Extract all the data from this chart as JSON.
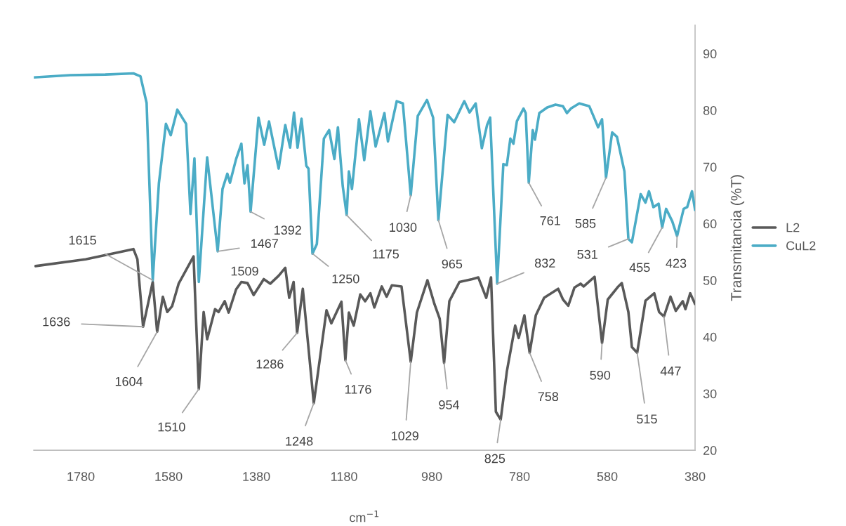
{
  "chart_data": {
    "type": "line",
    "xlabel": "cm$^{−1}$",
    "ylabel": "Transmitancia (%T)",
    "xlim": [
      1887,
      380
    ],
    "xticks": [
      1780,
      1580,
      1380,
      1180,
      980,
      780,
      580,
      380
    ],
    "ylim": [
      20,
      95
    ],
    "yticks": [
      20,
      30,
      40,
      50,
      60,
      70,
      80,
      90
    ],
    "grid": false,
    "legend": "right",
    "series": [
      {
        "name": "L2",
        "color": "#595959",
        "x": [
          1883,
          1769,
          1660,
          1651,
          1638,
          1616,
          1606,
          1593,
          1583,
          1572,
          1557,
          1523,
          1511,
          1500,
          1492,
          1474,
          1466,
          1452,
          1443,
          1426,
          1414,
          1400,
          1386,
          1363,
          1348,
          1329,
          1314,
          1305,
          1295,
          1287,
          1274,
          1249,
          1220,
          1209,
          1186,
          1177,
          1169,
          1158,
          1143,
          1132,
          1120,
          1111,
          1094,
          1083,
          1071,
          1049,
          1028,
          1014,
          990,
          974,
          962,
          952,
          940,
          917,
          888,
          874,
          856,
          845,
          834,
          823,
          809,
          806,
          790,
          782,
          769,
          757,
          743,
          724,
          692,
          681,
          669,
          655,
          641,
          634,
          609,
          592,
          579,
          555,
          547,
          532,
          524,
          512,
          493,
          473,
          462,
          451,
          436,
          424,
          408,
          402,
          391,
          380
        ],
        "values": [
          52.5,
          53.7,
          55.5,
          53.7,
          41.8,
          49.7,
          40.9,
          47.1,
          44.4,
          45.4,
          49.4,
          54.2,
          30.8,
          44.4,
          39.6,
          44.9,
          44.4,
          46.3,
          44.3,
          48.4,
          49.7,
          49.5,
          47.4,
          50.2,
          49.4,
          50.8,
          52.2,
          46.9,
          49.7,
          40.7,
          48.5,
          28.3,
          44.7,
          42.4,
          46.2,
          35.9,
          44.3,
          42.0,
          47.5,
          46.3,
          47.7,
          45.2,
          48.9,
          47.1,
          49.1,
          48.9,
          35.6,
          44.3,
          50.0,
          45.8,
          43.2,
          35.4,
          46.3,
          49.7,
          50.2,
          50.5,
          46.9,
          50.5,
          26.8,
          25.4,
          33.9,
          35.2,
          42.0,
          39.8,
          43.8,
          37.2,
          43.8,
          46.9,
          48.5,
          46.6,
          45.5,
          48.7,
          49.4,
          48.9,
          50.6,
          38.9,
          46.6,
          48.9,
          49.5,
          44.4,
          38.2,
          37.2,
          46.4,
          47.7,
          44.4,
          43.6,
          47.1,
          44.6,
          46.3,
          44.9,
          47.7,
          45.8
        ]
      },
      {
        "name": "CuL2",
        "color": "#4bacc6",
        "x": [
          1887,
          1804,
          1724,
          1660,
          1644,
          1630,
          1616,
          1602,
          1586,
          1575,
          1560,
          1540,
          1530,
          1521,
          1511,
          1492,
          1468,
          1457,
          1446,
          1440,
          1426,
          1414,
          1407,
          1400,
          1393,
          1375,
          1362,
          1351,
          1329,
          1314,
          1303,
          1294,
          1286,
          1277,
          1266,
          1261,
          1252,
          1242,
          1226,
          1214,
          1202,
          1194,
          1183,
          1174,
          1169,
          1162,
          1146,
          1134,
          1120,
          1108,
          1088,
          1080,
          1060,
          1046,
          1028,
          1012,
          991,
          977,
          965,
          944,
          929,
          906,
          894,
          880,
          866,
          854,
          847,
          831,
          817,
          809,
          801,
          794,
          786,
          771,
          766,
          759,
          750,
          745,
          735,
          717,
          698,
          681,
          672,
          663,
          644,
          621,
          609,
          601,
          592,
          583,
          569,
          558,
          541,
          532,
          524,
          504,
          493,
          485,
          475,
          463,
          455,
          446,
          432,
          421,
          406,
          398,
          387,
          380
        ],
        "values": [
          85.8,
          86.2,
          86.3,
          86.5,
          86.0,
          81.3,
          50.0,
          67.1,
          77.6,
          75.6,
          80.1,
          77.6,
          61.7,
          71.5,
          49.7,
          71.7,
          55.1,
          66.1,
          68.8,
          67.2,
          71.4,
          74.1,
          67.1,
          70.3,
          62.1,
          78.7,
          73.9,
          78.0,
          69.7,
          77.4,
          73.4,
          79.6,
          73.4,
          78.5,
          70.2,
          69.7,
          54.7,
          56.4,
          75.0,
          76.5,
          71.4,
          77.0,
          66.6,
          61.5,
          69.2,
          66.1,
          78.4,
          71.2,
          79.8,
          73.6,
          79.5,
          74.5,
          81.6,
          81.2,
          65.0,
          79.0,
          81.8,
          78.7,
          60.6,
          79.2,
          77.9,
          81.6,
          79.6,
          81.2,
          73.3,
          77.4,
          78.7,
          49.4,
          70.5,
          70.3,
          75.0,
          74.1,
          78.1,
          80.3,
          79.5,
          67.2,
          76.5,
          74.8,
          79.5,
          80.5,
          81.0,
          80.7,
          79.5,
          80.3,
          81.2,
          80.7,
          78.5,
          77.0,
          78.4,
          68.1,
          76.1,
          75.3,
          69.2,
          57.3,
          56.7,
          65.2,
          63.7,
          65.7,
          62.9,
          63.5,
          59.3,
          62.6,
          60.4,
          57.8,
          62.6,
          62.9,
          65.7,
          62.4
        ]
      }
    ],
    "annotations": [
      {
        "text": "1615",
        "x": 1616,
        "y": 50.0
      },
      {
        "text": "1636",
        "x": 1638,
        "y": 41.8
      },
      {
        "text": "1604",
        "x": 1606,
        "y": 40.9
      },
      {
        "text": "1510",
        "x": 1511,
        "y": 30.8
      },
      {
        "text": "1509",
        "x": 1511,
        "y": 49.7
      },
      {
        "text": "1467",
        "x": 1468,
        "y": 55.1
      },
      {
        "text": "1392",
        "x": 1393,
        "y": 62.1
      },
      {
        "text": "1286",
        "x": 1287,
        "y": 40.7
      },
      {
        "text": "1248",
        "x": 1249,
        "y": 28.3
      },
      {
        "text": "1250",
        "x": 1252,
        "y": 54.7
      },
      {
        "text": "1175",
        "x": 1174,
        "y": 61.5
      },
      {
        "text": "1176",
        "x": 1177,
        "y": 35.9
      },
      {
        "text": "1030",
        "x": 1028,
        "y": 65.0
      },
      {
        "text": "1029",
        "x": 1028,
        "y": 35.6
      },
      {
        "text": "965",
        "x": 965,
        "y": 60.6
      },
      {
        "text": "954",
        "x": 952,
        "y": 35.4
      },
      {
        "text": "832",
        "x": 831,
        "y": 49.4
      },
      {
        "text": "825",
        "x": 823,
        "y": 25.4
      },
      {
        "text": "761",
        "x": 759,
        "y": 67.2
      },
      {
        "text": "758",
        "x": 757,
        "y": 37.2
      },
      {
        "text": "585",
        "x": 583,
        "y": 68.1
      },
      {
        "text": "590",
        "x": 592,
        "y": 38.9
      },
      {
        "text": "531",
        "x": 532,
        "y": 57.3
      },
      {
        "text": "515",
        "x": 512,
        "y": 37.2
      },
      {
        "text": "455",
        "x": 455,
        "y": 59.3
      },
      {
        "text": "447",
        "x": 451,
        "y": 43.6
      },
      {
        "text": "423",
        "x": 421,
        "y": 57.8
      }
    ]
  }
}
